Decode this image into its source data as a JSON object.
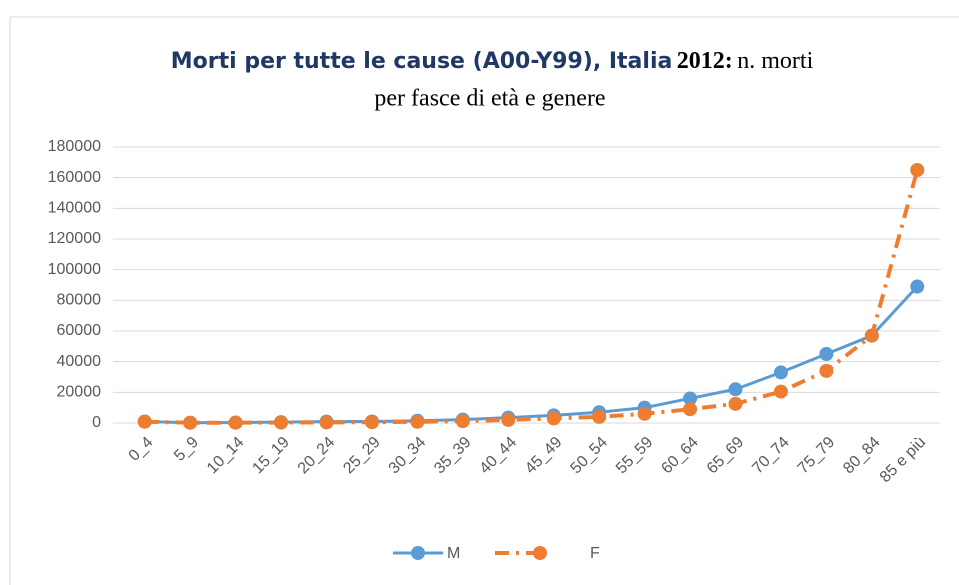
{
  "chart_data": {
    "type": "line",
    "title": [
      "Morti per tutte le cause (A00-Y99), Italia",
      "2012:",
      "n. morti",
      "per fasce di età e genere"
    ],
    "categories": [
      "0_4",
      "5_9",
      "10_14",
      "15_19",
      "20_24",
      "25_29",
      "30_34",
      "35_39",
      "40_44",
      "45_49",
      "50_54",
      "55_59",
      "60_64",
      "65_69",
      "70_74",
      "75_79",
      "80_84",
      "85 e più"
    ],
    "series": [
      {
        "name": "M",
        "color": "#5b9bd5",
        "values": [
          1000,
          200,
          300,
          600,
          900,
          1000,
          1500,
          2200,
          3500,
          5000,
          7000,
          10000,
          16000,
          22000,
          33000,
          45000,
          57000,
          89000
        ]
      },
      {
        "name": "F",
        "color": "#ed7d31",
        "values": [
          800,
          200,
          200,
          300,
          400,
          500,
          800,
          1200,
          2000,
          3000,
          4000,
          6000,
          9000,
          12500,
          20500,
          34000,
          57000,
          165000
        ]
      }
    ],
    "ylim": [
      0,
      180000
    ],
    "yticks": [
      0,
      20000,
      40000,
      60000,
      80000,
      100000,
      120000,
      140000,
      160000,
      180000
    ],
    "grid": true,
    "legend": "bottom"
  }
}
